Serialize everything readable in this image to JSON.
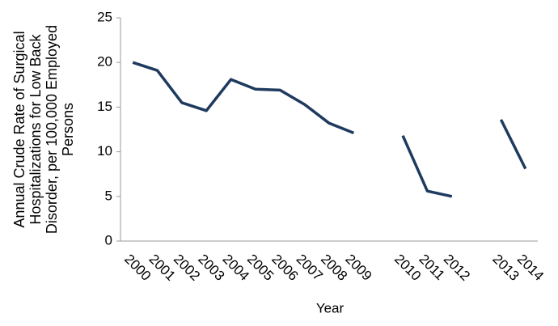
{
  "chart_data": {
    "type": "line",
    "x_label": "Year",
    "y_label": "Annual Crude Rate of Surgical Hospitalizations for Low Back Disorder, per 100,000 Employed Persons",
    "categories": [
      "2000",
      "2001",
      "2002",
      "2003",
      "2004",
      "2005",
      "2006",
      "2007",
      "2008",
      "2009",
      null,
      "2010",
      "2011",
      "2012",
      null,
      "2013",
      "2014"
    ],
    "values": [
      20.0,
      19.1,
      15.5,
      14.6,
      18.1,
      17.0,
      16.9,
      15.3,
      13.2,
      12.1,
      null,
      11.8,
      5.6,
      5.0,
      null,
      13.6,
      8.1
    ],
    "color": "#1f3a5f",
    "ylim": [
      0,
      25
    ],
    "yticks": [
      0,
      5,
      10,
      15,
      20,
      25
    ],
    "grid": false
  }
}
